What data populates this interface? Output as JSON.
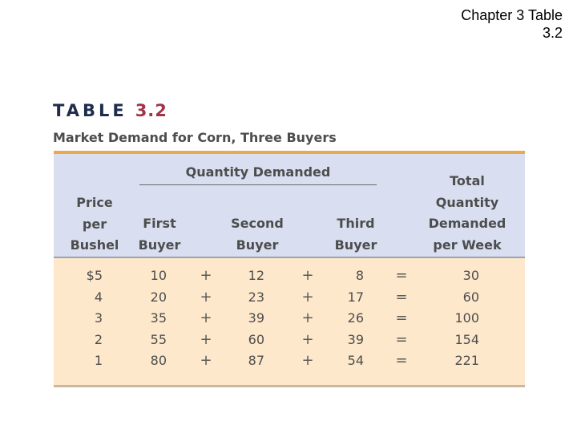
{
  "slide": {
    "title_line1": "Chapter 3 Table",
    "title_line2": "3.2"
  },
  "table": {
    "label_word": "TABLE",
    "label_number": "3.2",
    "caption": "Market Demand for Corn, Three Buyers",
    "group_header": "Quantity Demanded",
    "columns": {
      "price": [
        "Price",
        "per",
        "Bushel"
      ],
      "first": [
        "First",
        "Buyer"
      ],
      "second": [
        "Second",
        "Buyer"
      ],
      "third": [
        "Third",
        "Buyer"
      ],
      "total": [
        "Total",
        "Quantity",
        "Demanded",
        "per Week"
      ]
    },
    "operators": {
      "plus": "+",
      "equals": "="
    },
    "rows": [
      {
        "price": "$5",
        "first": "10",
        "second": "12",
        "third": "8",
        "total": "30"
      },
      {
        "price": "4",
        "first": "20",
        "second": "23",
        "third": "17",
        "total": "60"
      },
      {
        "price": "3",
        "first": "35",
        "second": "39",
        "third": "26",
        "total": "100"
      },
      {
        "price": "2",
        "first": "55",
        "second": "60",
        "third": "39",
        "total": "154"
      },
      {
        "price": "1",
        "first": "80",
        "second": "87",
        "third": "54",
        "total": "221"
      }
    ]
  },
  "colors": {
    "label_word": "#1f2c4c",
    "label_number": "#a2344a",
    "accent_rule": "#e8a94f",
    "header_band": "#d9dff0",
    "body_band": "#fde8cb"
  }
}
